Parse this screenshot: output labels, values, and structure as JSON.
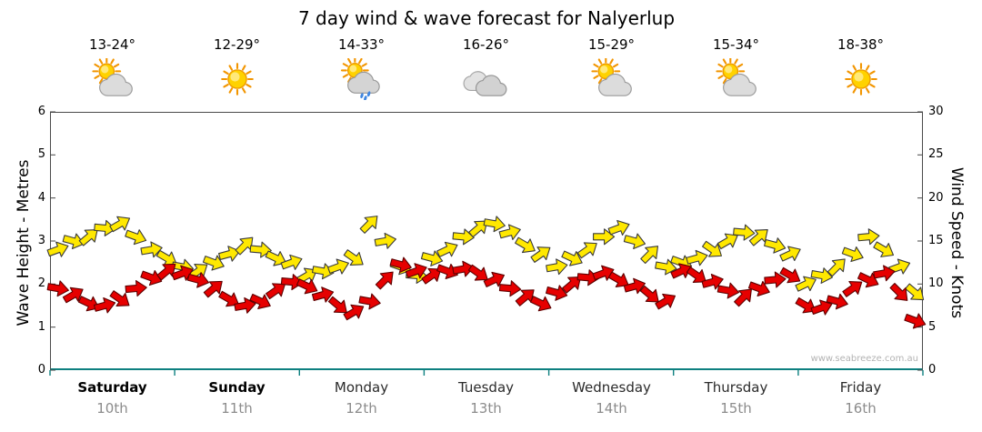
{
  "title": "7 day wind & wave forecast for Nalyerlup",
  "watermark": "www.seabreeze.com.au",
  "days": [
    {
      "name": "Saturday",
      "date": "10th",
      "temp": "13-24°",
      "icon": "sun-cloud"
    },
    {
      "name": "Sunday",
      "date": "11th",
      "temp": "12-29°",
      "icon": "sunny"
    },
    {
      "name": "Monday",
      "date": "12th",
      "temp": "14-33°",
      "icon": "sun-cloud-rain"
    },
    {
      "name": "Tuesday",
      "date": "13th",
      "temp": "16-26°",
      "icon": "cloudy"
    },
    {
      "name": "Wednesday",
      "date": "14th",
      "temp": "15-29°",
      "icon": "sun-cloud"
    },
    {
      "name": "Thursday",
      "date": "15th",
      "temp": "15-34°",
      "icon": "sun-cloud"
    },
    {
      "name": "Friday",
      "date": "16th",
      "temp": "18-38°",
      "icon": "sunny"
    }
  ],
  "axes": {
    "left": {
      "label": "Wave Height - Metres",
      "ticks": [
        "0",
        "1",
        "2",
        "3",
        "4",
        "5",
        "6"
      ]
    },
    "right": {
      "label": "Wind Speed - Knots",
      "ticks": [
        "0",
        "5",
        "10",
        "15",
        "20",
        "25",
        "30"
      ]
    }
  },
  "colors": {
    "wind": "#ffe800",
    "wave": "#e60000",
    "axis_bottom": "#0e8080"
  },
  "chart_data": {
    "type": "scatter",
    "title": "7 day wind & wave forecast for Nalyerlup",
    "x_categories": [
      "Saturday 10th",
      "Sunday 11th",
      "Monday 12th",
      "Tuesday 13th",
      "Wednesday 14th",
      "Thursday 15th",
      "Friday 16th"
    ],
    "points_per_day": 8,
    "left_axis": {
      "label": "Wave Height - Metres",
      "range": [
        0,
        6
      ]
    },
    "right_axis": {
      "label": "Wind Speed - Knots",
      "range": [
        0,
        30
      ]
    },
    "legend": "hidden",
    "grid": false,
    "series": [
      {
        "name": "Wind Speed",
        "units": "knots",
        "axis": "right",
        "axis_range": [
          0,
          30
        ],
        "color": "#ffe800",
        "outline": "#3a3a3a",
        "marker": "direction-arrow",
        "values": [
          14,
          15,
          15.5,
          16.5,
          17,
          15.5,
          14,
          13,
          12,
          11.5,
          12.5,
          13.5,
          14.5,
          14,
          13,
          12.5,
          11,
          11.5,
          12,
          13,
          17,
          15,
          12,
          11,
          13,
          14,
          15.5,
          16.5,
          17,
          16,
          14.5,
          13.5,
          12,
          13,
          14,
          15.5,
          16.5,
          15,
          13.5,
          12,
          12.5,
          13,
          14,
          15,
          16,
          15.5,
          14.5,
          13.5,
          10,
          11,
          12,
          13.5,
          15.5,
          14,
          12,
          9
        ],
        "directions_deg": [
          -20,
          15,
          -40,
          5,
          -30,
          20,
          -10,
          30,
          10,
          -35,
          20,
          -15,
          -45,
          5,
          25,
          -20,
          -30,
          10,
          -20,
          35,
          -45,
          -10,
          20,
          5,
          15,
          -25,
          5,
          -40,
          10,
          -15,
          30,
          -35,
          -10,
          25,
          -35,
          0,
          -20,
          15,
          -45,
          10,
          20,
          -15,
          35,
          -30,
          5,
          -40,
          15,
          -25,
          -25,
          10,
          -45,
          20,
          -5,
          30,
          -20,
          40
        ]
      },
      {
        "name": "Wave Height",
        "units": "metres",
        "axis": "left",
        "axis_range": [
          0,
          6
        ],
        "color": "#e60000",
        "outline": "#5c0000",
        "marker": "direction-arrow",
        "values": [
          1.9,
          1.75,
          1.55,
          1.5,
          1.65,
          1.9,
          2.15,
          2.3,
          2.25,
          2.1,
          1.9,
          1.65,
          1.5,
          1.6,
          1.85,
          2.05,
          1.95,
          1.75,
          1.5,
          1.35,
          1.6,
          2.1,
          2.45,
          2.3,
          2.2,
          2.3,
          2.35,
          2.25,
          2.1,
          1.9,
          1.7,
          1.55,
          1.8,
          2.0,
          2.15,
          2.25,
          2.1,
          1.95,
          1.75,
          1.6,
          2.3,
          2.2,
          2.05,
          1.85,
          1.7,
          1.9,
          2.1,
          2.2,
          1.5,
          1.45,
          1.6,
          1.9,
          2.1,
          2.25,
          1.8,
          1.15
        ],
        "directions_deg": [
          10,
          -30,
          25,
          -15,
          35,
          -5,
          20,
          -40,
          -20,
          15,
          -40,
          30,
          -10,
          25,
          -35,
          5,
          25,
          -15,
          40,
          -30,
          10,
          -45,
          15,
          -20,
          -35,
          20,
          -10,
          35,
          -25,
          5,
          -40,
          25,
          15,
          -40,
          5,
          -20,
          30,
          -15,
          40,
          -30,
          -25,
          35,
          -15,
          10,
          -45,
          20,
          -5,
          30,
          30,
          -20,
          15,
          -35,
          25,
          -10,
          45,
          20
        ]
      }
    ]
  }
}
